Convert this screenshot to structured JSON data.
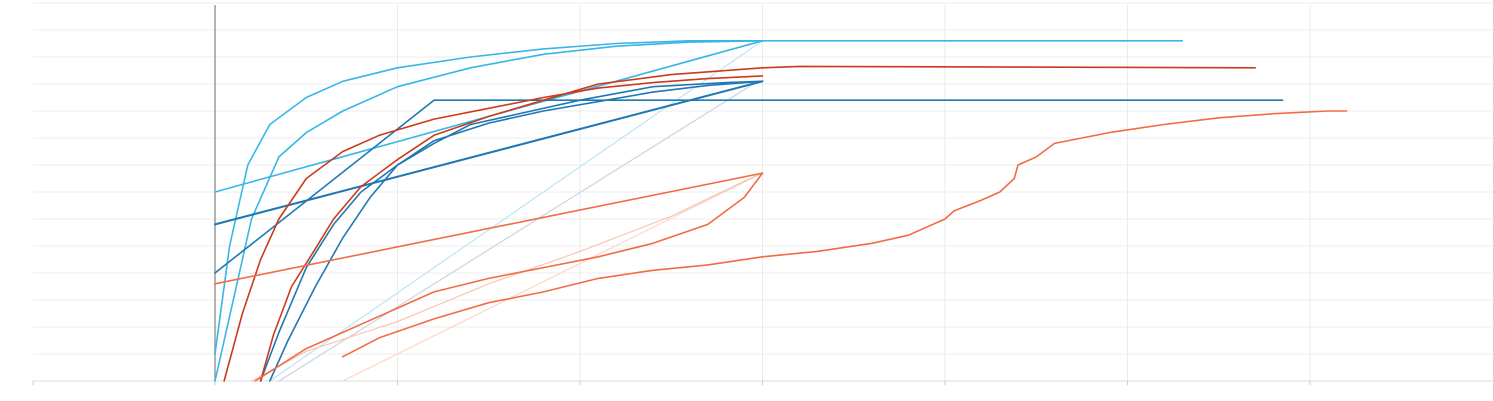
{
  "chart_data": {
    "type": "line",
    "title": "",
    "xlabel": "",
    "ylabel": "",
    "xlim": [
      -10,
      70
    ],
    "ylim": [
      0,
      14
    ],
    "grid": true,
    "legend": "none",
    "x_gridlines": [
      0,
      10,
      20,
      30,
      40,
      50,
      60
    ],
    "y_gridlines": [
      1,
      2,
      3,
      4,
      5,
      6,
      7,
      8,
      9,
      10,
      11,
      12,
      13,
      14
    ],
    "colors": {
      "sky": "#38b6e6",
      "sky_light": "#bfe4f5",
      "blue": "#1f78b4",
      "red": "#cc3a1c",
      "orange": "#f26b43",
      "orange_light": "#fbc4b1"
    },
    "series": [
      {
        "color": "#bfe4f5",
        "width": 1.2,
        "points": [
          [
            3,
            0
          ],
          [
            30,
            12.6
          ]
        ]
      },
      {
        "color": "#cfd9e6",
        "width": 1.4,
        "points": [
          [
            3.5,
            0
          ],
          [
            29.5,
            11
          ]
        ]
      },
      {
        "color": "#fbd6c8",
        "width": 1.2,
        "points": [
          [
            7,
            0
          ],
          [
            30,
            7.7
          ]
        ]
      },
      {
        "color": "#fbc4b1",
        "width": 1.2,
        "points": [
          [
            2,
            0
          ],
          [
            5,
            1.1
          ],
          [
            10,
            2.2
          ],
          [
            15,
            3.6
          ],
          [
            20,
            4.8
          ],
          [
            25,
            6.1
          ],
          [
            29,
            7.4
          ],
          [
            30,
            7.7
          ]
        ]
      },
      {
        "color": "#38b6e6",
        "width": 1.6,
        "points": [
          [
            0,
            7
          ],
          [
            30,
            12.6
          ],
          [
            53,
            12.6
          ]
        ]
      },
      {
        "color": "#38b6e6",
        "width": 1.6,
        "points": [
          [
            0,
            1
          ],
          [
            0.8,
            5
          ],
          [
            1.8,
            8
          ],
          [
            3,
            9.5
          ],
          [
            5,
            10.5
          ],
          [
            7,
            11.1
          ],
          [
            10,
            11.6
          ],
          [
            14,
            12
          ],
          [
            18,
            12.3
          ],
          [
            22,
            12.5
          ],
          [
            26,
            12.6
          ],
          [
            30,
            12.6
          ]
        ]
      },
      {
        "color": "#38b6e6",
        "width": 1.6,
        "points": [
          [
            0,
            0
          ],
          [
            1,
            3
          ],
          [
            2,
            6
          ],
          [
            3.5,
            8.3
          ],
          [
            5,
            9.2
          ],
          [
            7,
            10
          ],
          [
            10,
            10.9
          ],
          [
            14,
            11.6
          ],
          [
            18,
            12.1
          ],
          [
            22,
            12.4
          ],
          [
            26,
            12.55
          ],
          [
            30,
            12.6
          ]
        ]
      },
      {
        "color": "#1f78b4",
        "width": 2.0,
        "points": [
          [
            0,
            5.8
          ],
          [
            30,
            11.1
          ]
        ]
      },
      {
        "color": "#1f78b4",
        "width": 1.6,
        "points": [
          [
            0,
            5.8
          ],
          [
            30,
            11.1
          ]
        ]
      },
      {
        "color": "#1f78b4",
        "width": 1.6,
        "points": [
          [
            3,
            0
          ],
          [
            4,
            1.5
          ],
          [
            5.5,
            3.5
          ],
          [
            7,
            5.3
          ],
          [
            8.5,
            6.8
          ],
          [
            10,
            8
          ],
          [
            12,
            8.8
          ],
          [
            14,
            9.5
          ],
          [
            17,
            9.95
          ],
          [
            20,
            10.4
          ],
          [
            24,
            10.9
          ],
          [
            28,
            11.05
          ],
          [
            30,
            11.1
          ]
        ]
      },
      {
        "color": "#1f78b4",
        "width": 1.6,
        "points": [
          [
            2.5,
            0
          ],
          [
            3.5,
            1.8
          ],
          [
            5,
            4.2
          ],
          [
            6.5,
            5.8
          ],
          [
            8,
            7
          ],
          [
            10,
            8
          ],
          [
            12,
            8.9
          ],
          [
            15,
            9.55
          ],
          [
            18,
            10
          ],
          [
            21,
            10.35
          ],
          [
            24,
            10.7
          ],
          [
            27,
            10.95
          ],
          [
            30,
            11.1
          ]
        ]
      },
      {
        "color": "#1f78b4",
        "width": 1.6,
        "points": [
          [
            0,
            4
          ],
          [
            12,
            10.4
          ],
          [
            58.5,
            10.4
          ]
        ]
      },
      {
        "color": "#cc3a1c",
        "width": 1.6,
        "points": [
          [
            0.5,
            0
          ],
          [
            1.5,
            2.5
          ],
          [
            2.5,
            4.5
          ],
          [
            3.5,
            6
          ],
          [
            5,
            7.5
          ],
          [
            7,
            8.5
          ],
          [
            9,
            9.1
          ],
          [
            12,
            9.7
          ],
          [
            15,
            10.1
          ],
          [
            18,
            10.5
          ],
          [
            21,
            10.85
          ],
          [
            24,
            11.05
          ],
          [
            27,
            11.2
          ],
          [
            30,
            11.3
          ]
        ]
      },
      {
        "color": "#cc3a1c",
        "width": 1.6,
        "points": [
          [
            2.5,
            0
          ],
          [
            3.2,
            1.7
          ],
          [
            4.2,
            3.5
          ],
          [
            5.5,
            4.9
          ],
          [
            6.5,
            6
          ],
          [
            8,
            7.2
          ],
          [
            10,
            8.2
          ],
          [
            12,
            9.1
          ],
          [
            15,
            9.8
          ],
          [
            18,
            10.4
          ],
          [
            21,
            11
          ],
          [
            25,
            11.35
          ],
          [
            30,
            11.6
          ],
          [
            32,
            11.65
          ],
          [
            57,
            11.6
          ]
        ]
      },
      {
        "color": "#f26b43",
        "width": 1.6,
        "points": [
          [
            0,
            3.6
          ],
          [
            30,
            7.7
          ]
        ]
      },
      {
        "color": "#f26b43",
        "width": 1.6,
        "points": [
          [
            2.2,
            0
          ],
          [
            5,
            1.2
          ],
          [
            9,
            2.4
          ],
          [
            12,
            3.3
          ],
          [
            15,
            3.8
          ],
          [
            18,
            4.2
          ],
          [
            21,
            4.6
          ],
          [
            24,
            5.1
          ],
          [
            27,
            5.8
          ],
          [
            29,
            6.8
          ],
          [
            30,
            7.7
          ]
        ]
      },
      {
        "color": "#f26b43",
        "width": 1.6,
        "points": [
          [
            7,
            0.9
          ],
          [
            9,
            1.6
          ],
          [
            12,
            2.3
          ],
          [
            15,
            2.9
          ],
          [
            18,
            3.3
          ],
          [
            21,
            3.8
          ],
          [
            24,
            4.1
          ],
          [
            27,
            4.3
          ],
          [
            30,
            4.6
          ],
          [
            33,
            4.8
          ],
          [
            36,
            5.1
          ],
          [
            38,
            5.4
          ],
          [
            40,
            6
          ],
          [
            40.5,
            6.3
          ],
          [
            42,
            6.7
          ],
          [
            43,
            7
          ],
          [
            43.8,
            7.5
          ],
          [
            44,
            8
          ],
          [
            45,
            8.3
          ],
          [
            46,
            8.8
          ],
          [
            49,
            9.2
          ],
          [
            52,
            9.5
          ],
          [
            55,
            9.75
          ],
          [
            58,
            9.9
          ],
          [
            61,
            10
          ],
          [
            62,
            10
          ]
        ]
      }
    ]
  }
}
